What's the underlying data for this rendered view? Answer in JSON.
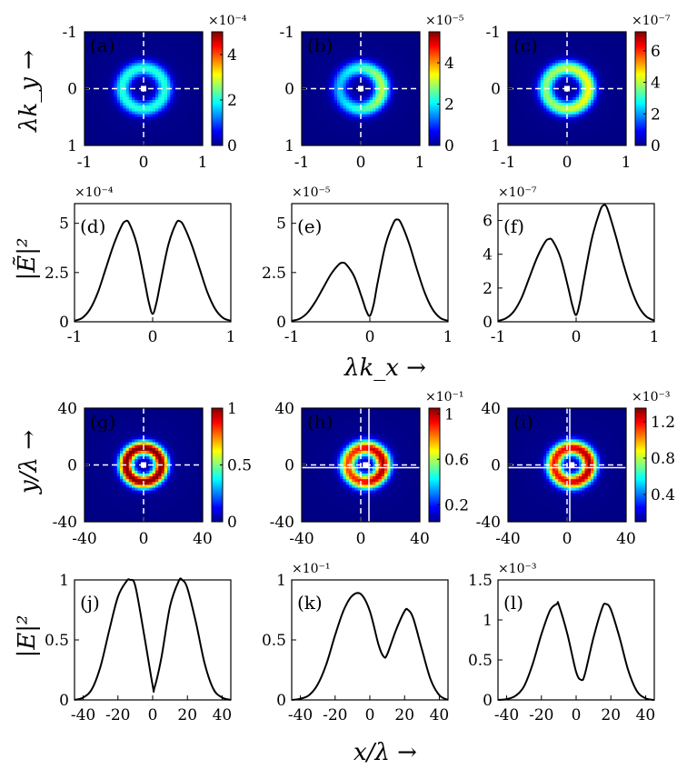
{
  "chart_data": [
    {
      "id": "a",
      "panel_label": "(a)",
      "type": "heatmap",
      "ring": "symmetric",
      "x_ticks": [
        "-1",
        "0",
        "1"
      ],
      "y_ticks": [
        "-1",
        "0",
        "1"
      ],
      "xlim": [
        -1,
        1
      ],
      "ylim": [
        -1,
        1
      ],
      "colorbar_ticks": [
        "0",
        "2",
        "4"
      ],
      "colorbar_range": [
        0,
        5
      ],
      "colorbar_exponent": "×10⁻⁴",
      "peaks": [
        0.4,
        0.4
      ],
      "ring_radius": 0.36,
      "ring_width": 0.13
    },
    {
      "id": "b",
      "panel_label": "(b)",
      "type": "heatmap",
      "ring": "right-heavy",
      "x_ticks": [
        "-1",
        "0",
        "1"
      ],
      "y_ticks": [
        "-1",
        "0",
        "1"
      ],
      "xlim": [
        -1,
        1
      ],
      "ylim": [
        -1,
        1
      ],
      "colorbar_ticks": [
        "0",
        "2",
        "4"
      ],
      "colorbar_range": [
        0,
        5.5
      ],
      "colorbar_exponent": "×10⁻⁵",
      "peaks": [
        0.3,
        0.55
      ],
      "ring_radius": 0.36,
      "ring_width": 0.13
    },
    {
      "id": "c",
      "panel_label": "(c)",
      "type": "heatmap",
      "ring": "slightly-right-heavy",
      "x_ticks": [
        "-1",
        "0",
        "1"
      ],
      "y_ticks": [
        "-1",
        "0",
        "1"
      ],
      "xlim": [
        -1,
        1
      ],
      "ylim": [
        -1,
        1
      ],
      "colorbar_ticks": [
        "0",
        "2",
        "4",
        "6"
      ],
      "colorbar_range": [
        0,
        7.2
      ],
      "colorbar_exponent": "×10⁻⁷",
      "peaks": [
        0.5,
        0.62
      ],
      "ring_radius": 0.36,
      "ring_width": 0.13
    },
    {
      "id": "d",
      "panel_label": "(d)",
      "type": "line",
      "x_ticks": [
        "-1",
        "0",
        "1"
      ],
      "y_ticks": [
        "0",
        "2.5",
        "5"
      ],
      "y_tick_values": [
        0,
        2.5,
        5
      ],
      "xlim": [
        -1,
        1
      ],
      "ylim": [
        0,
        6
      ],
      "exponent": "×10⁻⁴",
      "x": [
        -1.0,
        -0.9,
        -0.8,
        -0.7,
        -0.6,
        -0.5,
        -0.4,
        -0.35,
        -0.3,
        -0.2,
        -0.1,
        -0.05,
        0.0,
        0.05,
        0.1,
        0.2,
        0.3,
        0.35,
        0.4,
        0.5,
        0.6,
        0.7,
        0.8,
        0.9,
        1.0
      ],
      "y": [
        0.05,
        0.2,
        0.65,
        1.5,
        2.7,
        3.9,
        4.85,
        5.1,
        5.0,
        3.9,
        2.0,
        1.0,
        0.4,
        1.0,
        2.0,
        3.9,
        5.0,
        5.1,
        4.85,
        3.9,
        2.7,
        1.5,
        0.65,
        0.2,
        0.05
      ]
    },
    {
      "id": "e",
      "panel_label": "(e)",
      "type": "line",
      "x_ticks": [
        "-1",
        "0",
        "1"
      ],
      "y_ticks": [
        "0",
        "2.5",
        "5"
      ],
      "y_tick_values": [
        0,
        2.5,
        5
      ],
      "xlim": [
        -1,
        1
      ],
      "ylim": [
        0,
        6
      ],
      "exponent": "×10⁻⁵",
      "x": [
        -1.0,
        -0.9,
        -0.8,
        -0.7,
        -0.6,
        -0.5,
        -0.4,
        -0.35,
        -0.3,
        -0.2,
        -0.1,
        -0.05,
        0.0,
        0.05,
        0.1,
        0.2,
        0.3,
        0.35,
        0.4,
        0.5,
        0.6,
        0.7,
        0.8,
        0.9,
        1.0
      ],
      "y": [
        0.05,
        0.15,
        0.45,
        1.0,
        1.7,
        2.4,
        2.9,
        3.0,
        2.9,
        2.3,
        1.2,
        0.6,
        0.3,
        0.9,
        2.0,
        3.9,
        5.0,
        5.2,
        5.0,
        4.0,
        2.7,
        1.5,
        0.65,
        0.2,
        0.05
      ]
    },
    {
      "id": "f",
      "panel_label": "(f)",
      "type": "line",
      "x_ticks": [
        "-1",
        "0",
        "1"
      ],
      "y_ticks": [
        "0",
        "2",
        "4",
        "6"
      ],
      "y_tick_values": [
        0,
        2,
        4,
        6
      ],
      "xlim": [
        -1,
        1
      ],
      "ylim": [
        0,
        7
      ],
      "exponent": "×10⁻⁷",
      "x": [
        -1.0,
        -0.9,
        -0.8,
        -0.7,
        -0.6,
        -0.5,
        -0.4,
        -0.35,
        -0.3,
        -0.2,
        -0.1,
        -0.05,
        0.0,
        0.05,
        0.1,
        0.2,
        0.3,
        0.35,
        0.4,
        0.5,
        0.6,
        0.7,
        0.8,
        0.9,
        1.0
      ],
      "y": [
        0.05,
        0.2,
        0.6,
        1.4,
        2.6,
        3.8,
        4.7,
        4.9,
        4.8,
        3.8,
        2.0,
        1.0,
        0.4,
        1.2,
        2.5,
        4.9,
        6.5,
        6.9,
        6.7,
        5.2,
        3.5,
        2.0,
        0.9,
        0.3,
        0.08
      ]
    },
    {
      "id": "g",
      "panel_label": "(g)",
      "type": "heatmap",
      "ring": "symmetric",
      "x_ticks": [
        "-40",
        "0",
        "40"
      ],
      "y_ticks": [
        "40",
        "0",
        "-40"
      ],
      "xlim": [
        -48,
        48
      ],
      "ylim": [
        -48,
        48
      ],
      "colorbar_ticks": [
        "0",
        "0.5",
        "1"
      ],
      "colorbar_range": [
        0,
        1
      ],
      "colorbar_exponent": "",
      "peaks": [
        1.0,
        1.0
      ],
      "ring_radius": 0.3,
      "ring_width": 0.12
    },
    {
      "id": "h",
      "panel_label": "(h)",
      "type": "heatmap",
      "ring": "shifted",
      "x_ticks": [
        "-40",
        "0",
        "40"
      ],
      "y_ticks": [
        "40",
        "0",
        "-40"
      ],
      "xlim": [
        -48,
        48
      ],
      "ylim": [
        -48,
        48
      ],
      "colorbar_ticks": [
        "0.2",
        "0.6",
        "1"
      ],
      "colorbar_range": [
        0.05,
        1.05
      ],
      "colorbar_exponent": "×10⁻¹",
      "peaks": [
        0.8,
        0.95
      ],
      "ring_radius": 0.3,
      "ring_width": 0.13
    },
    {
      "id": "i",
      "panel_label": "(i)",
      "type": "heatmap",
      "ring": "shifted",
      "x_ticks": [
        "-40",
        "0",
        "40"
      ],
      "y_ticks": [
        "40",
        "0",
        "-40"
      ],
      "xlim": [
        -48,
        48
      ],
      "ylim": [
        -48,
        48
      ],
      "colorbar_ticks": [
        "0.4",
        "0.8",
        "1.2"
      ],
      "colorbar_range": [
        0.1,
        1.35
      ],
      "colorbar_exponent": "×10⁻³",
      "peaks": [
        0.85,
        0.95
      ],
      "ring_radius": 0.3,
      "ring_width": 0.13
    },
    {
      "id": "j",
      "panel_label": "(j)",
      "type": "line",
      "x_ticks": [
        "-40",
        "-20",
        "0",
        "20",
        "40"
      ],
      "y_ticks": [
        "0",
        "0.5",
        "1"
      ],
      "y_tick_values": [
        0,
        0.5,
        1
      ],
      "xlim": [
        -45,
        45
      ],
      "ylim": [
        0,
        1
      ],
      "exponent": "",
      "x": [
        -45,
        -40,
        -35,
        -30,
        -25,
        -20,
        -15,
        -13,
        -10,
        -5,
        0,
        1,
        5,
        10,
        15,
        17,
        20,
        25,
        30,
        35,
        40,
        45
      ],
      "y": [
        0.0,
        0.02,
        0.09,
        0.28,
        0.58,
        0.86,
        0.99,
        1.0,
        0.95,
        0.55,
        0.12,
        0.1,
        0.35,
        0.78,
        0.99,
        1.0,
        0.93,
        0.64,
        0.3,
        0.09,
        0.02,
        0.0
      ]
    },
    {
      "id": "k",
      "panel_label": "(k)",
      "type": "line",
      "x_ticks": [
        "-40",
        "-20",
        "0",
        "20",
        "40"
      ],
      "y_ticks": [
        "0",
        "0.5",
        "1"
      ],
      "y_tick_values": [
        0,
        0.5,
        1
      ],
      "xlim": [
        -45,
        45
      ],
      "ylim": [
        0,
        1
      ],
      "exponent": "×10⁻¹",
      "x": [
        -45,
        -40,
        -35,
        -30,
        -25,
        -20,
        -15,
        -10,
        -5,
        0,
        5,
        8,
        10,
        15,
        20,
        22,
        25,
        30,
        35,
        40,
        45
      ],
      "y": [
        0.0,
        0.01,
        0.04,
        0.13,
        0.3,
        0.54,
        0.75,
        0.87,
        0.88,
        0.74,
        0.46,
        0.36,
        0.38,
        0.58,
        0.74,
        0.75,
        0.68,
        0.42,
        0.17,
        0.04,
        0.0
      ]
    },
    {
      "id": "l",
      "panel_label": "(l)",
      "type": "line",
      "x_ticks": [
        "-40",
        "-20",
        "0",
        "20",
        "40"
      ],
      "y_ticks": [
        "0",
        "0.5",
        "1",
        "1.5"
      ],
      "y_tick_values": [
        0,
        0.5,
        1,
        1.5
      ],
      "xlim": [
        -45,
        45
      ],
      "ylim": [
        0,
        1.5
      ],
      "exponent": "×10⁻³",
      "x": [
        -45,
        -40,
        -35,
        -30,
        -25,
        -20,
        -15,
        -11,
        -10,
        -5,
        0,
        3,
        5,
        10,
        15,
        17,
        20,
        25,
        30,
        35,
        40,
        45
      ],
      "y": [
        0.0,
        0.01,
        0.05,
        0.17,
        0.45,
        0.82,
        1.12,
        1.2,
        1.19,
        0.82,
        0.35,
        0.25,
        0.32,
        0.78,
        1.15,
        1.2,
        1.13,
        0.78,
        0.37,
        0.11,
        0.02,
        0.0
      ]
    }
  ],
  "axis_labels": {
    "top_ylabel": "λk_y →",
    "top_xlabel": "λk_x →",
    "spectrum_ylabel": "|Ẽ|²",
    "bottom_ylabel": "y/λ →",
    "bottom_xlabel": "x/λ →",
    "field_ylabel": "|E|²"
  }
}
